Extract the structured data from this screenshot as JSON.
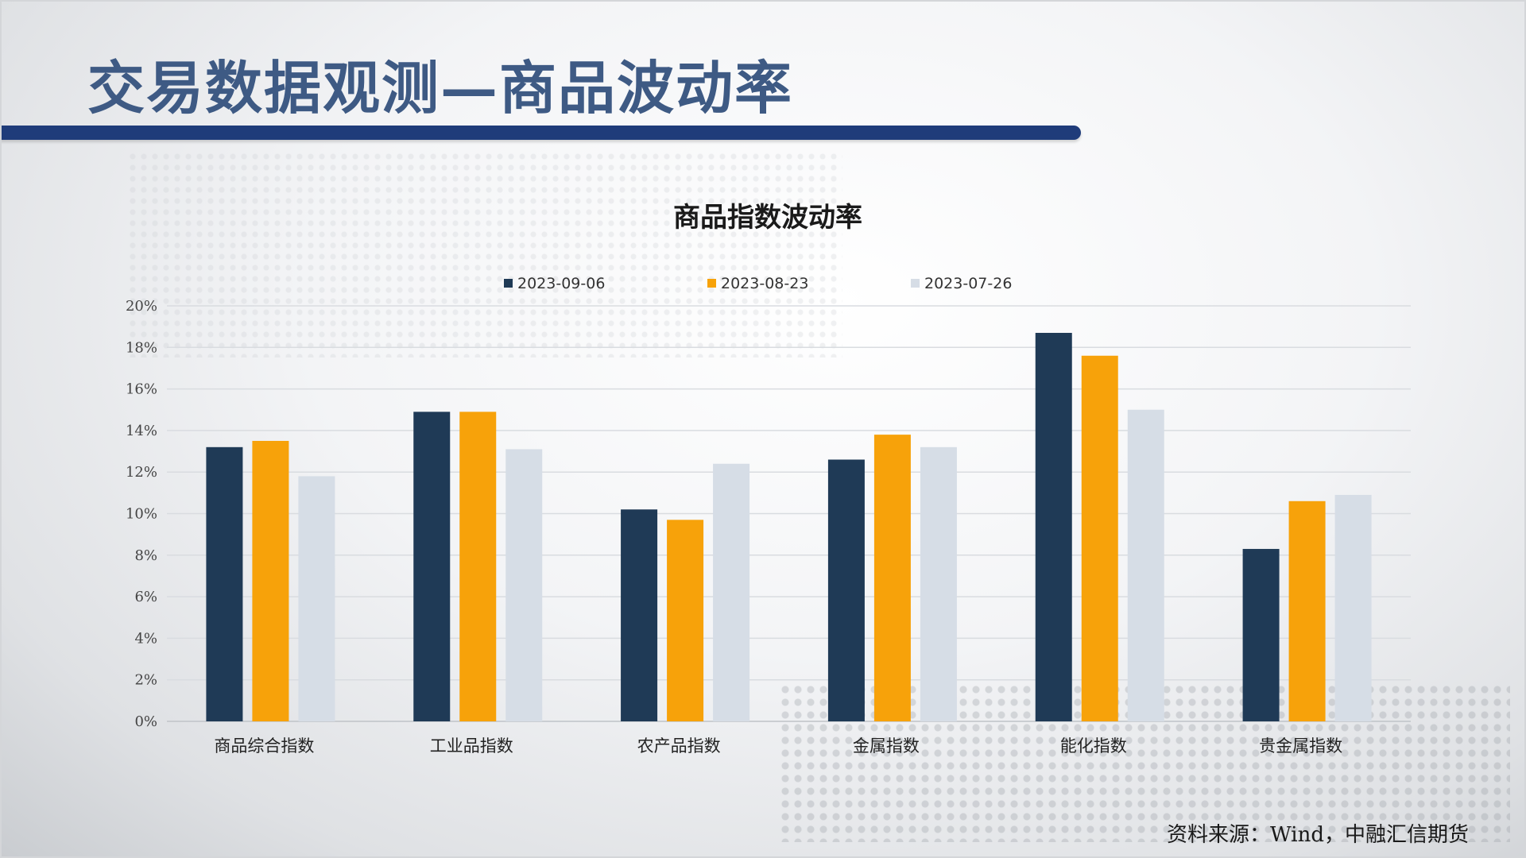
{
  "slide": {
    "title": "交易数据观测—商品波动率",
    "source": "资料来源：Wind，中融汇信期货"
  },
  "colors": {
    "title": "#3e5a84",
    "band": "#1f3c7a"
  },
  "chart_data": {
    "type": "bar",
    "title": "商品指数波动率",
    "legend_position": "top",
    "categories": [
      "商品综合指数",
      "工业品指数",
      "农产品指数",
      "金属指数",
      "能化指数",
      "贵金属指数"
    ],
    "series": [
      {
        "name": "2023-09-06",
        "color": "#1f3a56",
        "values": [
          13.2,
          14.9,
          10.2,
          12.6,
          18.7,
          8.3
        ]
      },
      {
        "name": "2023-08-23",
        "color": "#f7a20a",
        "values": [
          13.5,
          14.9,
          9.7,
          13.8,
          17.6,
          10.6
        ]
      },
      {
        "name": "2023-07-26",
        "color": "#d6dde6",
        "values": [
          11.8,
          13.1,
          12.4,
          13.2,
          15.0,
          10.9
        ]
      }
    ],
    "yticks": [
      "0%",
      "2%",
      "4%",
      "6%",
      "8%",
      "10%",
      "12%",
      "14%",
      "16%",
      "18%",
      "20%"
    ],
    "ylim": [
      0,
      20
    ],
    "grid": true
  }
}
